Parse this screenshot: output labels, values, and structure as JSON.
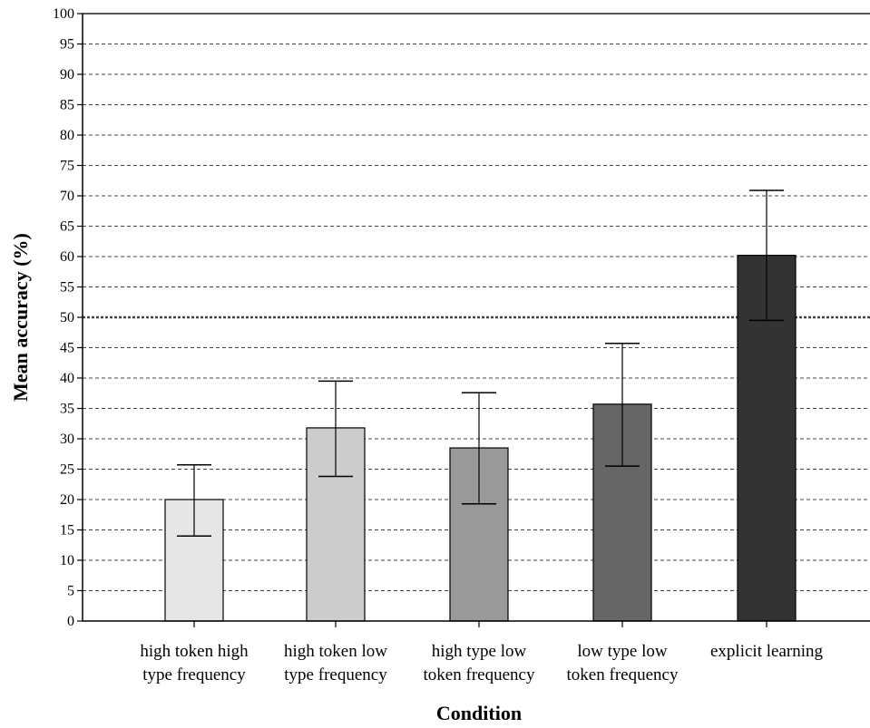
{
  "chart_data": {
    "type": "bar",
    "title": "",
    "xlabel": "Condition",
    "ylabel": "Mean accuracy (%)",
    "ylim": [
      0,
      100
    ],
    "yticks": [
      0,
      5,
      10,
      15,
      20,
      25,
      30,
      35,
      40,
      45,
      50,
      55,
      60,
      65,
      70,
      75,
      80,
      85,
      90,
      95,
      100
    ],
    "grid": true,
    "reference_line": 50,
    "categories": [
      [
        "high token high",
        "type frequency"
      ],
      [
        "high token low",
        "type frequency"
      ],
      [
        "high type low",
        "token frequency"
      ],
      [
        "low type low",
        "token frequency"
      ],
      [
        "explicit learning"
      ]
    ],
    "values": [
      20,
      31.8,
      28.5,
      35.7,
      60.2
    ],
    "error_low": [
      14,
      23.8,
      19.3,
      25.5,
      49.5
    ],
    "error_high": [
      25.7,
      39.5,
      37.6,
      45.7,
      70.9
    ],
    "colors": [
      "#e6e6e6",
      "#cccccc",
      "#999999",
      "#666666",
      "#333333"
    ]
  }
}
